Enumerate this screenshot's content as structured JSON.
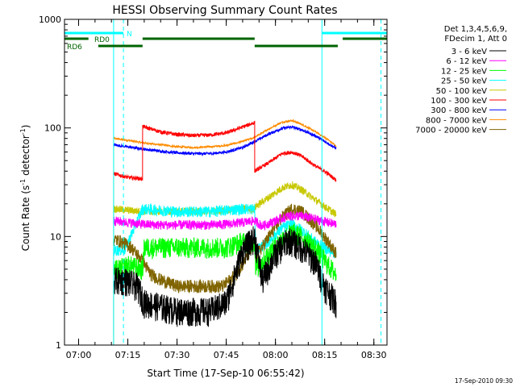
{
  "chart_data": {
    "type": "line",
    "title": "HESSI Observing Summary Count Rates",
    "xlabel": "Start Time (17-Sep-10 06:55:42)",
    "ylabel_parts": [
      "Count Rate (s",
      "-1",
      " detector",
      "-1",
      ")"
    ],
    "y_scale": "log",
    "ylim": [
      1,
      1000
    ],
    "y_ticks": [
      {
        "v": 1,
        "label": "1"
      },
      {
        "v": 10,
        "label": "10"
      },
      {
        "v": 100,
        "label": "100"
      },
      {
        "v": 1000,
        "label": "1000"
      }
    ],
    "xlim": [
      "06:55:42",
      "08:34:00"
    ],
    "x_ticks": [
      "07:00",
      "07:15",
      "07:30",
      "07:45",
      "08:00",
      "08:15",
      "08:30"
    ],
    "legend_header": [
      "Det 1,3,4,5,6,9,",
      "FDecim 1, Att 0"
    ],
    "legend_position": "right",
    "date_stamp": "17-Sep-2010 09:30",
    "flags": [
      {
        "label": "N",
        "color": "#00ffff",
        "segments": [
          [
            "06:55:42",
            "07:13:40"
          ],
          [
            "08:14:10",
            "08:34:00"
          ]
        ]
      },
      {
        "label": "RD0",
        "color": "#006400",
        "segments": [
          [
            "06:55:42",
            "07:03:00"
          ],
          [
            "07:19:30",
            "07:53:40"
          ],
          [
            "08:20:30",
            "08:34:00"
          ]
        ]
      },
      {
        "label": "RD6",
        "color": "#006400",
        "segments": [
          [
            "07:06:00",
            "07:19:30"
          ],
          [
            "07:53:40",
            "08:19:00"
          ]
        ]
      }
    ],
    "vertical_markers": [
      {
        "time": "07:10:40",
        "color": "#00ffff",
        "style": "solid"
      },
      {
        "time": "07:13:40",
        "color": "#00ffff",
        "style": "dashed"
      },
      {
        "time": "08:14:10",
        "color": "#00ffff",
        "style": "solid"
      },
      {
        "time": "08:32:10",
        "color": "#00ffff",
        "style": "dashed"
      }
    ],
    "series": [
      {
        "name": "3 - 6 keV",
        "color": "#000000",
        "x": [
          "07:10:40",
          "07:14:00",
          "07:18:00",
          "07:20:00",
          "07:25:00",
          "07:30:00",
          "07:35:00",
          "07:40:00",
          "07:45:00",
          "07:50:00",
          "07:53:40",
          "07:56:00",
          "08:00:00",
          "08:04:00",
          "08:08:00",
          "08:12:00",
          "08:15:00",
          "08:18:30"
        ],
        "values": [
          4.0,
          4.0,
          3.5,
          2.5,
          2.3,
          2.1,
          2.1,
          2.1,
          2.5,
          7.5,
          10.0,
          4.0,
          7.0,
          9.5,
          8.0,
          6.0,
          3.5,
          2.5
        ]
      },
      {
        "name": "6 - 12 keV",
        "color": "#ff00ff",
        "x": [
          "07:10:40",
          "07:15:00",
          "07:19:30",
          "07:25:00",
          "07:30:00",
          "07:35:00",
          "07:40:00",
          "07:45:00",
          "07:50:00",
          "07:53:40",
          "07:56:00",
          "08:00:00",
          "08:04:00",
          "08:08:00",
          "08:12:00",
          "08:16:00",
          "08:18:30"
        ],
        "values": [
          14.0,
          13.5,
          13.0,
          12.8,
          12.8,
          12.8,
          12.8,
          13.0,
          13.5,
          14.0,
          12.5,
          14.0,
          15.5,
          15.5,
          14.5,
          13.5,
          13.0
        ]
      },
      {
        "name": "12 - 25 keV",
        "color": "#00ff00",
        "x": [
          "07:10:40",
          "07:12:00",
          "07:15:00",
          "07:19:30",
          "07:20:00",
          "07:25:00",
          "07:35:00",
          "07:45:00",
          "07:50:00",
          "07:53:40",
          "07:54:00",
          "07:58:00",
          "08:02:00",
          "08:05:00",
          "08:08:00",
          "08:12:00",
          "08:16:00",
          "08:18:30"
        ],
        "values": [
          5.0,
          5.0,
          5.5,
          5.0,
          8.0,
          8.0,
          8.0,
          8.0,
          9.0,
          9.0,
          5.0,
          7.0,
          9.5,
          11.0,
          10.0,
          8.0,
          5.5,
          4.5
        ]
      },
      {
        "name": "25 - 50 keV",
        "color": "#00ffff",
        "x": [
          "07:10:40",
          "07:14:00",
          "07:19:30",
          "07:25:00",
          "07:30:00",
          "07:40:00",
          "07:45:00",
          "07:50:00",
          "07:53:40",
          "07:54:00",
          "07:58:00",
          "08:02:00",
          "08:05:00",
          "08:08:00",
          "08:12:00",
          "08:16:00",
          "08:18:30"
        ],
        "values": [
          7.5,
          7.5,
          18.0,
          17.5,
          17.0,
          17.0,
          17.5,
          18.0,
          18.0,
          7.5,
          9.0,
          12.0,
          13.0,
          11.5,
          9.0,
          7.5,
          7.0
        ]
      },
      {
        "name": "50 - 100 keV",
        "color": "#c8c800",
        "x": [
          "07:10:40",
          "07:15:00",
          "07:19:30",
          "07:25:00",
          "07:30:00",
          "07:40:00",
          "07:45:00",
          "07:50:00",
          "07:53:40",
          "07:54:00",
          "07:58:00",
          "08:02:00",
          "08:05:00",
          "08:08:00",
          "08:12:00",
          "08:16:00",
          "08:18:30"
        ],
        "values": [
          18.0,
          17.5,
          17.0,
          17.0,
          17.0,
          17.0,
          17.5,
          18.0,
          18.0,
          19.0,
          23.0,
          28.0,
          30.0,
          27.0,
          22.0,
          18.0,
          16.0
        ]
      },
      {
        "name": "100 - 300 keV",
        "color": "#ff0000",
        "x": [
          "07:10:40",
          "07:15:00",
          "07:19:30",
          "07:19:31",
          "07:25:00",
          "07:30:00",
          "07:35:00",
          "07:40:00",
          "07:45:00",
          "07:50:00",
          "07:53:40",
          "07:53:41",
          "07:58:00",
          "08:02:00",
          "08:05:00",
          "08:08:00",
          "08:12:00",
          "08:16:00",
          "08:18:30"
        ],
        "values": [
          38.0,
          35.0,
          34.0,
          103.0,
          92.0,
          87.0,
          85.0,
          86.0,
          90.0,
          102.0,
          112.0,
          40.0,
          48.0,
          58.0,
          60.0,
          55.0,
          45.0,
          38.0,
          33.0
        ]
      },
      {
        "name": "300 - 800 keV",
        "color": "#0000ff",
        "x": [
          "07:10:40",
          "07:15:00",
          "07:19:30",
          "07:25:00",
          "07:30:00",
          "07:35:00",
          "07:40:00",
          "07:45:00",
          "07:50:00",
          "07:53:40",
          "07:58:00",
          "08:02:00",
          "08:05:00",
          "08:08:00",
          "08:12:00",
          "08:16:00",
          "08:18:30"
        ],
        "values": [
          70.0,
          67.0,
          64.0,
          61.0,
          59.0,
          58.0,
          58.0,
          60.0,
          66.0,
          75.0,
          88.0,
          99.0,
          102.0,
          96.0,
          85.0,
          72.0,
          65.0
        ]
      },
      {
        "name": "800 - 7000 keV",
        "color": "#ff8c00",
        "x": [
          "07:10:40",
          "07:10:41",
          "07:15:00",
          "07:19:30",
          "07:25:00",
          "07:30:00",
          "07:35:00",
          "07:40:00",
          "07:45:00",
          "07:50:00",
          "07:53:40",
          "07:58:00",
          "08:02:00",
          "08:05:00",
          "08:08:00",
          "08:12:00",
          "08:16:00",
          "08:18:30"
        ],
        "values": [
          1.0,
          80.0,
          77.0,
          73.0,
          70.0,
          67.0,
          66.0,
          67.0,
          69.0,
          75.0,
          82.0,
          98.0,
          113.0,
          117.0,
          108.0,
          93.0,
          78.0,
          68.0
        ]
      },
      {
        "name": "7000 - 20000 keV",
        "color": "#806400",
        "x": [
          "07:10:40",
          "07:13:00",
          "07:16:00",
          "07:19:30",
          "07:22:00",
          "07:25:00",
          "07:30:00",
          "07:35:00",
          "07:40:00",
          "07:44:00",
          "07:48:00",
          "07:52:00",
          "07:53:40",
          "07:54:00",
          "07:58:00",
          "08:02:00",
          "08:05:00",
          "08:08:00",
          "08:12:00",
          "08:16:00",
          "08:18:30"
        ],
        "values": [
          9.5,
          9.0,
          8.0,
          6.0,
          4.5,
          4.0,
          3.5,
          3.5,
          3.5,
          3.5,
          4.5,
          7.0,
          8.5,
          6.5,
          10.0,
          15.0,
          18.0,
          17.0,
          13.0,
          9.0,
          7.0
        ]
      }
    ]
  }
}
